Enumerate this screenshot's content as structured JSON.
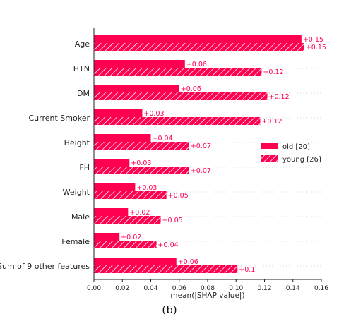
{
  "chart_data": {
    "type": "bar",
    "orientation": "horizontal",
    "categories": [
      "Age",
      "HTN",
      "DM",
      "Current Smoker",
      "Height",
      "FH",
      "Weight",
      "Male",
      "Female",
      "Sum of 9 other features"
    ],
    "series": [
      {
        "name": "old [20]",
        "values": [
          0.146,
          0.064,
          0.06,
          0.034,
          0.04,
          0.025,
          0.029,
          0.024,
          0.018,
          0.058
        ],
        "labels": [
          "+0.15",
          "+0.06",
          "+0.06",
          "+0.03",
          "+0.04",
          "+0.03",
          "+0.03",
          "+0.02",
          "+0.02",
          "+0.06"
        ],
        "color": "#ff0051",
        "pattern": "solid"
      },
      {
        "name": "young [26]",
        "values": [
          0.148,
          0.118,
          0.122,
          0.117,
          0.067,
          0.067,
          0.051,
          0.047,
          0.044,
          0.101
        ],
        "labels": [
          "+0.15",
          "+0.12",
          "+0.12",
          "+0.12",
          "+0.07",
          "+0.07",
          "+0.05",
          "+0.05",
          "+0.04",
          "+0.1"
        ],
        "color": "#ff0051",
        "pattern": "hatched"
      }
    ],
    "xlabel": "mean(|SHAP value|)",
    "xticks": [
      "0.00",
      "0.02",
      "0.04",
      "0.06",
      "0.08",
      "0.10",
      "0.12",
      "0.14",
      "0.16"
    ],
    "xlim": [
      0,
      0.16
    ],
    "legend_position": "right",
    "grid": "horizontal dotted"
  },
  "caption": "(b)"
}
